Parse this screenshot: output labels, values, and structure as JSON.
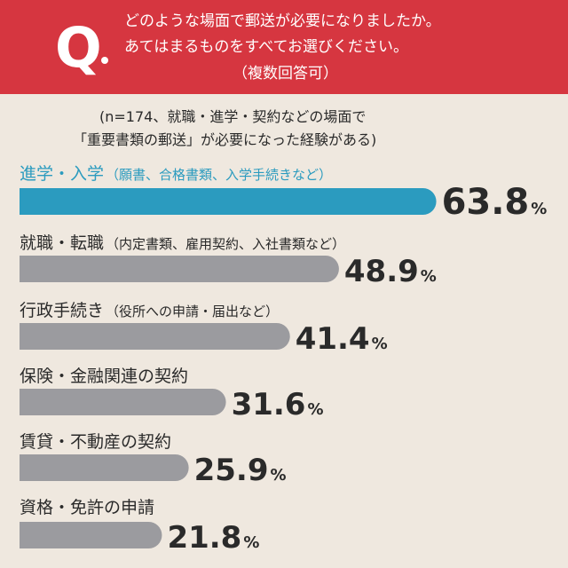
{
  "question": {
    "mark": "Q",
    "line1": "どのような場面で郵送が必要になりましたか。",
    "line2": "あてはまるものをすべてお選びください。",
    "line3": "（複数回答可）"
  },
  "note": {
    "line1": "(n=174、就職・進学・契約などの場面で",
    "line2": "「重要書類の郵送」が必要になった経験がある)"
  },
  "colors": {
    "header": "#d63640",
    "highlight_bar": "#2b9bbf",
    "bar": "#9b9b9f",
    "background": "#efe8df"
  },
  "chart_data": {
    "type": "bar",
    "orientation": "horizontal",
    "unit": "%",
    "xlim": [
      0,
      100
    ],
    "categories": [
      {
        "main": "進学・入学",
        "detail": "（願書、合格書類、入学手続きなど）"
      },
      {
        "main": "就職・転職",
        "detail": "（内定書類、雇用契約、入社書類など）"
      },
      {
        "main": "行政手続き",
        "detail": "（役所への申請・届出など）"
      },
      {
        "main": "保険・金融関連の契約",
        "detail": ""
      },
      {
        "main": "賃貸・不動産の契約",
        "detail": ""
      },
      {
        "main": "資格・免許の申請",
        "detail": ""
      }
    ],
    "values": [
      63.8,
      48.9,
      41.4,
      31.6,
      25.9,
      21.8
    ],
    "value_labels": [
      "63.8",
      "48.9",
      "41.4",
      "31.6",
      "25.9",
      "21.8"
    ],
    "highlight_index": 0
  }
}
